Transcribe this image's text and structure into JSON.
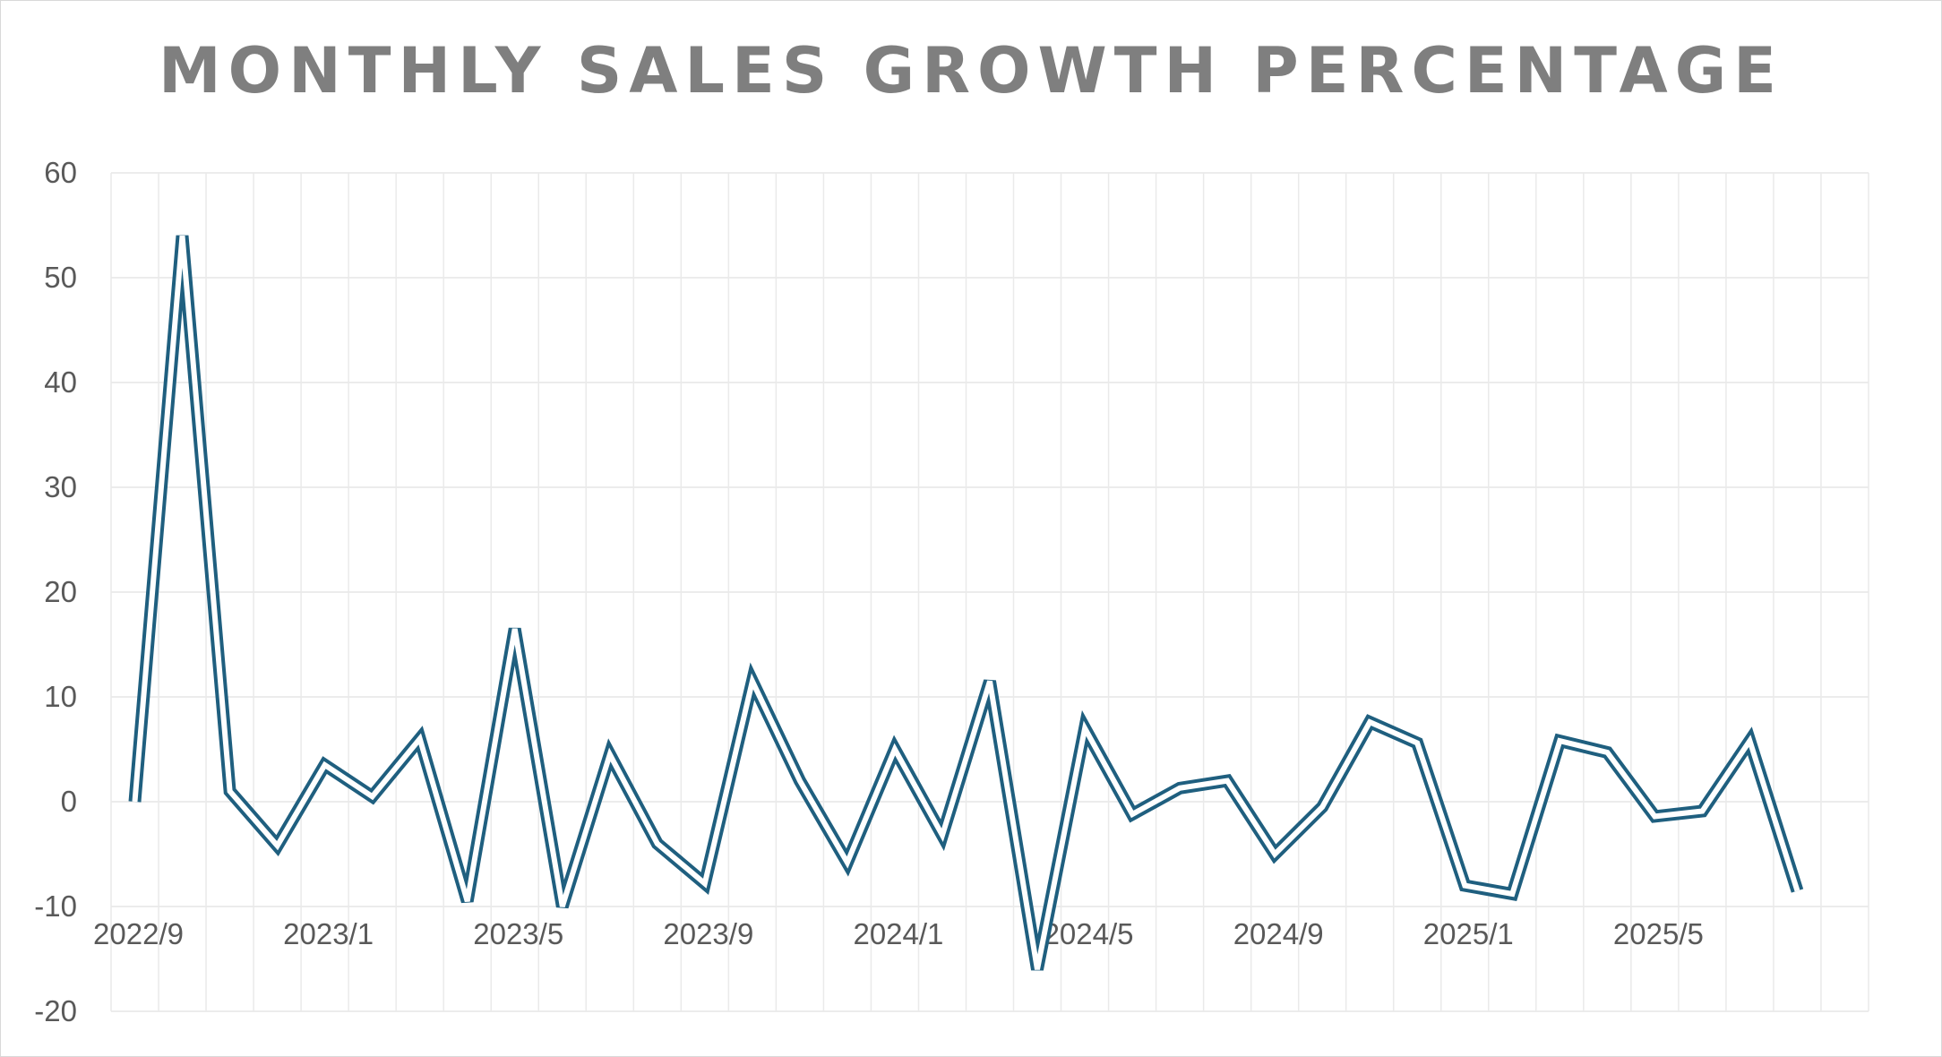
{
  "chart_data": {
    "type": "line",
    "title": "MONTHLY SALES GROWTH PERCENTAGE",
    "xlabel": "",
    "ylabel": "",
    "ylim": [
      -20,
      60
    ],
    "yticks": [
      60,
      50,
      40,
      30,
      20,
      10,
      0,
      -10,
      -20
    ],
    "x": [
      "2022/9",
      "2022/10",
      "2022/11",
      "2022/12",
      "2023/1",
      "2023/2",
      "2023/3",
      "2023/4",
      "2023/5",
      "2023/6",
      "2023/7",
      "2023/8",
      "2023/9",
      "2023/10",
      "2023/11",
      "2023/12",
      "2024/1",
      "2024/2",
      "2024/3",
      "2024/4",
      "2024/5",
      "2024/6",
      "2024/7",
      "2024/8",
      "2024/9",
      "2024/10",
      "2024/11",
      "2024/12",
      "2025/1",
      "2025/2",
      "2025/3",
      "2025/4",
      "2025/5",
      "2025/6",
      "2025/7",
      "2025/8"
    ],
    "xtick_labels": [
      "2022/9",
      "2023/1",
      "2023/5",
      "2023/9",
      "2024/1",
      "2024/5",
      "2024/9",
      "2025/1",
      "2025/5"
    ],
    "series": [
      {
        "values": [
          0,
          54,
          1,
          -4.2,
          3.5,
          0.5,
          6,
          -9.5,
          16.5,
          -10,
          4.5,
          -4,
          -7.8,
          11.5,
          2,
          -5.8,
          5,
          -3.2,
          11.5,
          -16,
          7,
          -1.2,
          1.3,
          2,
          -5,
          -0.5,
          7.6,
          5.6,
          -8,
          -8.8,
          5.8,
          4.7,
          -1.4,
          -0.9,
          5.8,
          -8.5
        ],
        "color": "#1f5f7f"
      }
    ],
    "grid": true,
    "legend": "none"
  }
}
